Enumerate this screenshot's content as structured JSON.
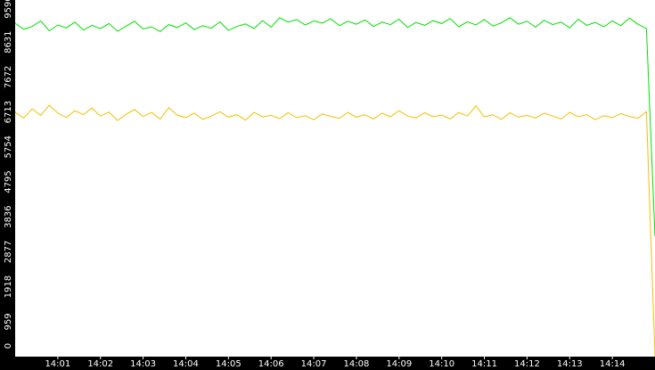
{
  "chart_data": {
    "type": "line",
    "x": [
      0,
      0.2,
      0.4,
      0.6,
      0.8,
      1,
      1.2,
      1.4,
      1.6,
      1.8,
      2,
      2.2,
      2.4,
      2.6,
      2.8,
      3,
      3.2,
      3.4,
      3.6,
      3.8,
      4,
      4.2,
      4.4,
      4.6,
      4.8,
      5,
      5.2,
      5.4,
      5.6,
      5.8,
      6,
      6.2,
      6.4,
      6.6,
      6.8,
      7,
      7.2,
      7.4,
      7.6,
      7.8,
      8,
      8.2,
      8.4,
      8.6,
      8.8,
      9,
      9.2,
      9.4,
      9.6,
      9.8,
      10,
      10.2,
      10.4,
      10.6,
      10.8,
      11,
      11.2,
      11.4,
      11.6,
      11.8,
      12,
      12.2,
      12.4,
      12.6,
      12.8,
      13,
      13.2,
      13.4,
      13.6,
      13.8,
      14,
      14.2,
      14.4,
      14.6,
      14.8,
      15
    ],
    "series": [
      {
        "color": "#00e000",
        "values": [
          9150,
          8980,
          9060,
          9210,
          8940,
          9100,
          9020,
          9180,
          8960,
          9090,
          9000,
          9140,
          8930,
          9070,
          9200,
          8990,
          9050,
          8920,
          9110,
          9030,
          9160,
          8970,
          9080,
          9010,
          9190,
          8950,
          9060,
          9130,
          9000,
          9220,
          9040,
          9300,
          9180,
          9250,
          9100,
          9210,
          9150,
          9270,
          9080,
          9200,
          9120,
          9240,
          9060,
          9180,
          9110,
          9260,
          9030,
          9170,
          9090,
          9220,
          9140,
          9280,
          9050,
          9190,
          9100,
          9250,
          9070,
          9160,
          9300,
          9120,
          9200,
          9040,
          9230,
          9110,
          9180,
          9020,
          9260,
          9090,
          9170,
          9050,
          9210,
          9080,
          9290,
          9120,
          9000,
          3300
        ]
      },
      {
        "color": "#f0c000",
        "values": [
          6700,
          6550,
          6800,
          6620,
          6900,
          6680,
          6560,
          6750,
          6640,
          6820,
          6600,
          6710,
          6480,
          6650,
          6780,
          6590,
          6700,
          6520,
          6830,
          6630,
          6560,
          6680,
          6510,
          6600,
          6720,
          6570,
          6640,
          6490,
          6700,
          6580,
          6620,
          6530,
          6690,
          6560,
          6610,
          6500,
          6660,
          6590,
          6540,
          6700,
          6570,
          6640,
          6520,
          6680,
          6580,
          6750,
          6600,
          6550,
          6690,
          6580,
          6630,
          6520,
          6700,
          6600,
          6880,
          6580,
          6640,
          6510,
          6690,
          6570,
          6620,
          6550,
          6680,
          6600,
          6520,
          6700,
          6580,
          6640,
          6500,
          6610,
          6560,
          6670,
          6590,
          6540,
          6720,
          0
        ]
      }
    ],
    "xlim": [
      0,
      15
    ],
    "xticks": [
      {
        "value": 1,
        "label": "14:01"
      },
      {
        "value": 2,
        "label": "14:02"
      },
      {
        "value": 3,
        "label": "14:03"
      },
      {
        "value": 4,
        "label": "14:04"
      },
      {
        "value": 5,
        "label": "14:05"
      },
      {
        "value": 6,
        "label": "14:06"
      },
      {
        "value": 7,
        "label": "14:07"
      },
      {
        "value": 8,
        "label": "14:08"
      },
      {
        "value": 9,
        "label": "14:09"
      },
      {
        "value": 10,
        "label": "14:10"
      },
      {
        "value": 11,
        "label": "14:11"
      },
      {
        "value": 12,
        "label": "14:12"
      },
      {
        "value": 13,
        "label": "14:13"
      },
      {
        "value": 14,
        "label": "14:14"
      }
    ],
    "ylim": [
      0,
      9590
    ],
    "yticks": [
      0,
      959,
      1918,
      2877,
      3836,
      4795,
      5754,
      6713,
      7672,
      8631,
      9590
    ]
  }
}
